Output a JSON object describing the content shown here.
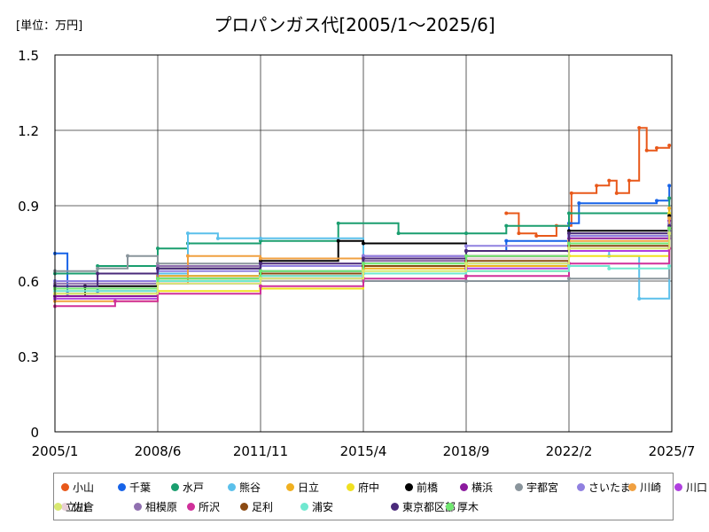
{
  "unit_label": "[単位：万円]",
  "chart_data": {
    "type": "line",
    "title": "プロパンガス代[2005/1〜2025/6]",
    "xlabel": "",
    "ylabel": "",
    "x_ticks": [
      "2005/1",
      "2008/6",
      "2011/11",
      "2015/4",
      "2018/9",
      "2022/2",
      "2025/7"
    ],
    "y_ticks": [
      "0",
      "0.3",
      "0.6",
      "0.9",
      "1.2",
      "1.5"
    ],
    "ylim": [
      0,
      1.5
    ],
    "xlim": [
      "2005/1",
      "2025/7"
    ],
    "grid": true,
    "legend_position": "bottom",
    "series": [
      {
        "name": "小山",
        "color": "#e8581a",
        "points": [
          [
            "2020/1",
            0.87
          ],
          [
            "2020/6",
            0.79
          ],
          [
            "2021/1",
            0.78
          ],
          [
            "2021/9",
            0.82
          ],
          [
            "2022/3",
            0.95
          ],
          [
            "2023/1",
            0.98
          ],
          [
            "2023/6",
            1.0
          ],
          [
            "2023/9",
            0.95
          ],
          [
            "2024/2",
            1.0
          ],
          [
            "2024/6",
            1.21
          ],
          [
            "2024/9",
            1.12
          ],
          [
            "2025/1",
            1.13
          ],
          [
            "2025/6",
            1.14
          ]
        ]
      },
      {
        "name": "千葉",
        "color": "#1763e8",
        "points": [
          [
            "2005/1",
            0.71
          ],
          [
            "2005/6",
            0.55
          ],
          [
            "2006/6",
            0.56
          ],
          [
            "2008/6",
            0.62
          ],
          [
            "2011/11",
            0.64
          ],
          [
            "2015/4",
            0.68
          ],
          [
            "2018/9",
            0.72
          ],
          [
            "2020/1",
            0.76
          ],
          [
            "2022/2",
            0.83
          ],
          [
            "2022/6",
            0.91
          ],
          [
            "2025/1",
            0.92
          ],
          [
            "2025/6",
            0.98
          ]
        ]
      },
      {
        "name": "水戸",
        "color": "#1a9e6f",
        "points": [
          [
            "2005/1",
            0.63
          ],
          [
            "2006/6",
            0.66
          ],
          [
            "2008/6",
            0.73
          ],
          [
            "2009/6",
            0.75
          ],
          [
            "2011/11",
            0.76
          ],
          [
            "2014/6",
            0.83
          ],
          [
            "2016/6",
            0.79
          ],
          [
            "2018/9",
            0.79
          ],
          [
            "2020/1",
            0.82
          ],
          [
            "2022/2",
            0.87
          ],
          [
            "2025/6",
            0.93
          ]
        ]
      },
      {
        "name": "熊谷",
        "color": "#5bc0eb",
        "points": [
          [
            "2005/1",
            0.6
          ],
          [
            "2008/6",
            0.63
          ],
          [
            "2009/6",
            0.79
          ],
          [
            "2010/6",
            0.77
          ],
          [
            "2011/11",
            0.77
          ],
          [
            "2015/4",
            0.66
          ],
          [
            "2018/9",
            0.67
          ],
          [
            "2022/2",
            0.72
          ],
          [
            "2023/6",
            0.7
          ],
          [
            "2024/6",
            0.53
          ],
          [
            "2025/6",
            0.8
          ]
        ]
      },
      {
        "name": "日立",
        "color": "#f0b020",
        "points": [
          [
            "2005/1",
            0.55
          ],
          [
            "2008/6",
            0.62
          ],
          [
            "2011/11",
            0.62
          ],
          [
            "2015/4",
            0.65
          ],
          [
            "2018/9",
            0.66
          ],
          [
            "2022/2",
            0.75
          ],
          [
            "2025/6",
            0.89
          ]
        ]
      },
      {
        "name": "府中",
        "color": "#f0e020",
        "points": [
          [
            "2005/1",
            0.54
          ],
          [
            "2008/6",
            0.56
          ],
          [
            "2011/11",
            0.57
          ],
          [
            "2015/4",
            0.63
          ],
          [
            "2018/9",
            0.64
          ],
          [
            "2022/2",
            0.7
          ],
          [
            "2025/6",
            0.87
          ]
        ]
      },
      {
        "name": "前橋",
        "color": "#000000",
        "points": [
          [
            "2005/1",
            0.54
          ],
          [
            "2006/1",
            0.58
          ],
          [
            "2008/6",
            0.65
          ],
          [
            "2011/11",
            0.68
          ],
          [
            "2014/6",
            0.76
          ],
          [
            "2015/4",
            0.75
          ],
          [
            "2018/9",
            0.72
          ],
          [
            "2022/2",
            0.8
          ],
          [
            "2025/6",
            0.86
          ]
        ]
      },
      {
        "name": "横浜",
        "color": "#8b1a9e",
        "points": [
          [
            "2005/1",
            0.54
          ],
          [
            "2008/6",
            0.6
          ],
          [
            "2011/11",
            0.66
          ],
          [
            "2015/4",
            0.7
          ],
          [
            "2018/9",
            0.7
          ],
          [
            "2022/2",
            0.77
          ],
          [
            "2025/6",
            0.84
          ]
        ]
      },
      {
        "name": "宇都宮",
        "color": "#8a959c",
        "points": [
          [
            "2005/1",
            0.64
          ],
          [
            "2006/6",
            0.65
          ],
          [
            "2007/6",
            0.7
          ],
          [
            "2008/6",
            0.67
          ],
          [
            "2011/11",
            0.62
          ],
          [
            "2015/4",
            0.6
          ],
          [
            "2018/9",
            0.6
          ],
          [
            "2022/2",
            0.61
          ],
          [
            "2025/6",
            0.78
          ]
        ]
      },
      {
        "name": "さいたま",
        "color": "#9080e0",
        "points": [
          [
            "2005/1",
            0.6
          ],
          [
            "2008/6",
            0.64
          ],
          [
            "2011/11",
            0.66
          ],
          [
            "2015/4",
            0.7
          ],
          [
            "2018/9",
            0.74
          ],
          [
            "2022/2",
            0.78
          ],
          [
            "2025/6",
            0.83
          ]
        ]
      },
      {
        "name": "川崎",
        "color": "#f0a040",
        "points": [
          [
            "2005/1",
            0.52
          ],
          [
            "2008/6",
            0.59
          ],
          [
            "2009/6",
            0.7
          ],
          [
            "2011/11",
            0.69
          ],
          [
            "2015/4",
            0.68
          ],
          [
            "2018/9",
            0.7
          ],
          [
            "2022/2",
            0.76
          ],
          [
            "2025/6",
            0.85
          ]
        ]
      },
      {
        "name": "川口",
        "color": "#b040e0",
        "points": [
          [
            "2005/1",
            0.53
          ],
          [
            "2008/6",
            0.59
          ],
          [
            "2011/11",
            0.61
          ],
          [
            "2015/4",
            0.63
          ],
          [
            "2018/9",
            0.65
          ],
          [
            "2022/2",
            0.72
          ],
          [
            "2025/6",
            0.77
          ]
        ]
      },
      {
        "name": "佐倉",
        "color": "#e8d0d8",
        "points": [
          [
            "2005/1",
            0.56
          ],
          [
            "2008/6",
            0.6
          ],
          [
            "2011/11",
            0.63
          ],
          [
            "2015/4",
            0.66
          ],
          [
            "2018/9",
            0.69
          ],
          [
            "2022/2",
            0.74
          ],
          [
            "2025/6",
            0.8
          ]
        ]
      },
      {
        "name": "相模原",
        "color": "#9070b0",
        "points": [
          [
            "2005/1",
            0.59
          ],
          [
            "2008/6",
            0.66
          ],
          [
            "2011/11",
            0.64
          ],
          [
            "2015/4",
            0.68
          ],
          [
            "2018/9",
            0.7
          ],
          [
            "2022/2",
            0.75
          ],
          [
            "2025/6",
            0.8
          ]
        ]
      },
      {
        "name": "所沢",
        "color": "#d0309a",
        "points": [
          [
            "2005/1",
            0.5
          ],
          [
            "2007/1",
            0.52
          ],
          [
            "2008/6",
            0.55
          ],
          [
            "2011/11",
            0.58
          ],
          [
            "2015/4",
            0.61
          ],
          [
            "2018/9",
            0.62
          ],
          [
            "2022/2",
            0.67
          ],
          [
            "2025/6",
            0.73
          ]
        ]
      },
      {
        "name": "足利",
        "color": "#8b4a12",
        "points": [
          [
            "2005/1",
            0.57
          ],
          [
            "2008/6",
            0.61
          ],
          [
            "2011/11",
            0.63
          ],
          [
            "2015/4",
            0.66
          ],
          [
            "2018/9",
            0.68
          ],
          [
            "2022/2",
            0.74
          ],
          [
            "2025/6",
            0.81
          ]
        ]
      },
      {
        "name": "浦安",
        "color": "#70e8d0",
        "points": [
          [
            "2005/1",
            0.56
          ],
          [
            "2008/6",
            0.6
          ],
          [
            "2011/11",
            0.62
          ],
          [
            "2015/4",
            0.63
          ],
          [
            "2018/9",
            0.64
          ],
          [
            "2022/2",
            0.66
          ],
          [
            "2023/6",
            0.65
          ],
          [
            "2025/6",
            0.66
          ]
        ]
      },
      {
        "name": "東京都区部",
        "color": "#4a2a7a",
        "points": [
          [
            "2005/1",
            0.58
          ],
          [
            "2006/6",
            0.63
          ],
          [
            "2008/6",
            0.65
          ],
          [
            "2011/11",
            0.67
          ],
          [
            "2015/4",
            0.69
          ],
          [
            "2018/9",
            0.72
          ],
          [
            "2022/2",
            0.79
          ],
          [
            "2025/6",
            0.82
          ]
        ]
      },
      {
        "name": "厚木",
        "color": "#70e870",
        "points": [
          [
            "2005/1",
            0.57
          ],
          [
            "2008/6",
            0.61
          ],
          [
            "2011/11",
            0.64
          ],
          [
            "2015/4",
            0.67
          ],
          [
            "2018/9",
            0.7
          ],
          [
            "2022/2",
            0.75
          ],
          [
            "2025/6",
            0.81
          ]
        ]
      },
      {
        "name": "立川",
        "color": "#d8e870",
        "points": [
          [
            "2005/1",
            0.55
          ],
          [
            "2008/6",
            0.59
          ],
          [
            "2011/11",
            0.61
          ],
          [
            "2015/4",
            0.64
          ],
          [
            "2018/9",
            0.67
          ],
          [
            "2022/2",
            0.73
          ],
          [
            "2025/6",
            0.79
          ]
        ]
      }
    ]
  }
}
